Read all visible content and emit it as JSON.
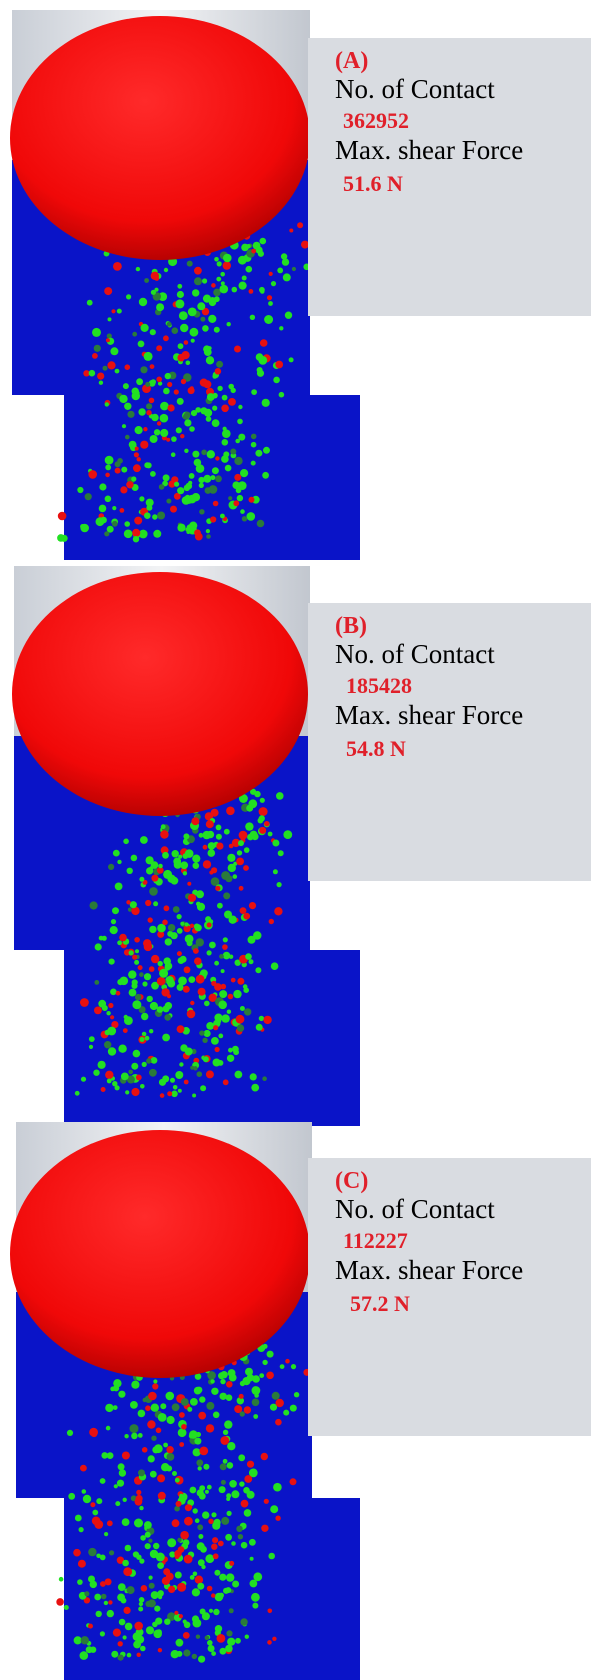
{
  "panels": [
    {
      "id": "A",
      "letter": "(A)",
      "contact_label": "No. of Contact",
      "contact_value": "362952",
      "shear_label": "Max. shear Force",
      "shear_value": "51.6 N"
    },
    {
      "id": "B",
      "letter": "(B)",
      "contact_label": "No. of Contact",
      "contact_value": "185428",
      "shear_label": "Max. shear Force",
      "shear_value": "54.8 N"
    },
    {
      "id": "C",
      "letter": "(C)",
      "contact_label": "No. of Contact",
      "contact_value": "112227",
      "shear_label": "Max. shear Force",
      "shear_value": "57.2 N"
    }
  ],
  "colors": {
    "sphere": "#ff1010",
    "particles_blue": "#0a14c8",
    "particles_green": "#22e022",
    "particles_red": "#e81010",
    "info_box": "#d9dce1",
    "label_red": "#e0202a"
  }
}
